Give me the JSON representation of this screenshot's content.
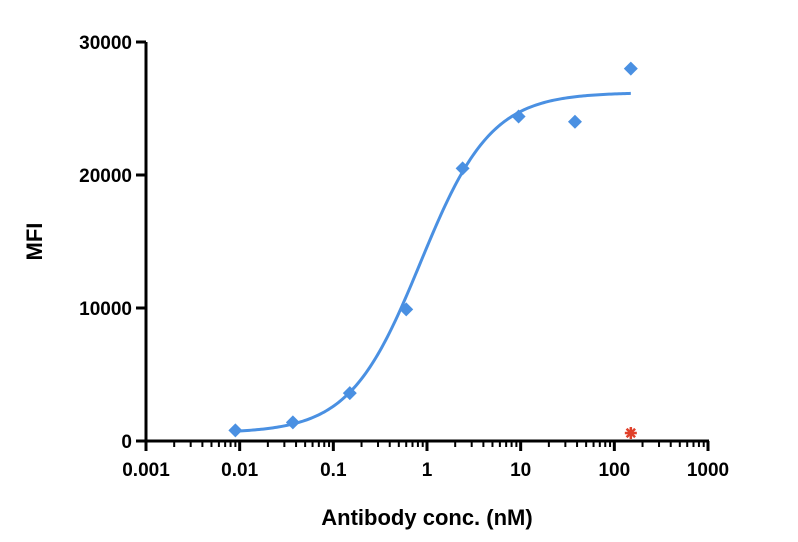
{
  "chart_data": {
    "type": "scatter",
    "title": "",
    "xlabel": "Antibody conc. (nM)",
    "ylabel": "MFI",
    "x_scale": "log",
    "xlim": [
      0.001,
      1000
    ],
    "ylim": [
      0,
      30000
    ],
    "x_ticks": [
      "0.001",
      "0.01",
      "0.1",
      "1",
      "10",
      "100",
      "1000"
    ],
    "y_ticks": [
      "0",
      "10000",
      "20000",
      "30000"
    ],
    "grid": false,
    "legend": "none",
    "series": [
      {
        "marker": "diamond",
        "color": "#4a90e2",
        "fit": "sigmoidal",
        "x": [
          0.009,
          0.037,
          0.15,
          0.6,
          2.4,
          9.5,
          38,
          150
        ],
        "y": [
          800,
          1400,
          3600,
          9900,
          20500,
          24400,
          24000,
          28000
        ]
      },
      {
        "marker": "star",
        "color": "#e0402a",
        "x": [
          150
        ],
        "y": [
          600
        ]
      }
    ],
    "fit_curve": {
      "series_index": 0,
      "color": "#4a90e2",
      "bottom": 600,
      "top": 26200,
      "ec50": 0.85,
      "hill": 1.15,
      "x_range": [
        0.009,
        150
      ]
    }
  }
}
